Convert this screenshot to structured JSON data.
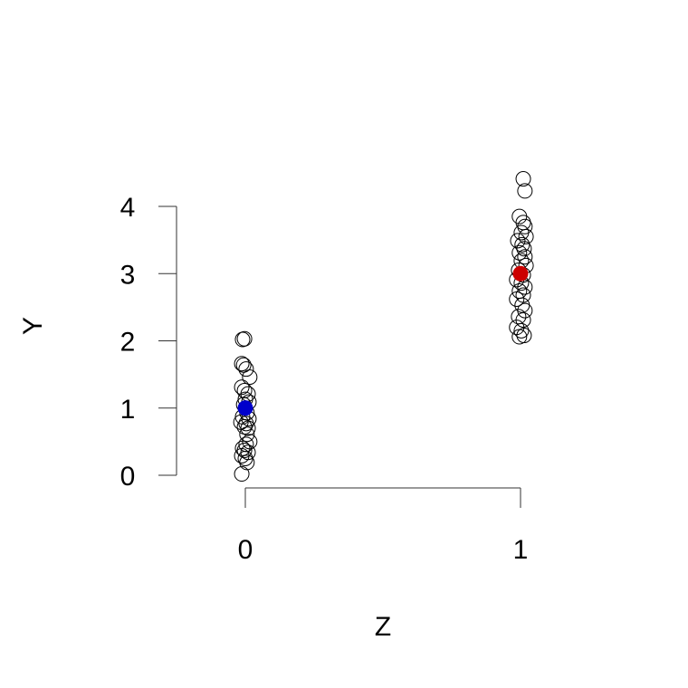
{
  "chart_data": {
    "type": "scatter",
    "title": "",
    "xlabel": "Z",
    "ylabel": "Y",
    "xlim": [
      0,
      1
    ],
    "ylim": [
      0,
      4
    ],
    "x_ticks": [
      "0",
      "1"
    ],
    "y_ticks": [
      "0",
      "1",
      "2",
      "3",
      "4"
    ],
    "grid": false,
    "legend": "none",
    "series": [
      {
        "group_x": 0,
        "color": "#000000",
        "marker": "open-circle",
        "points": [
          {
            "x": -0.01,
            "y": 2.02
          },
          {
            "x": -0.003,
            "y": 2.03
          },
          {
            "x": -0.013,
            "y": 1.66
          },
          {
            "x": -0.006,
            "y": 1.64
          },
          {
            "x": 0.003,
            "y": 1.58
          },
          {
            "x": 0.016,
            "y": 1.46
          },
          {
            "x": -0.013,
            "y": 1.31
          },
          {
            "x": -0.003,
            "y": 1.26
          },
          {
            "x": 0.01,
            "y": 1.21
          },
          {
            "x": 0.0,
            "y": 1.13
          },
          {
            "x": 0.013,
            "y": 1.09
          },
          {
            "x": -0.006,
            "y": 1.05
          },
          {
            "x": 0.006,
            "y": 0.93
          },
          {
            "x": -0.01,
            "y": 0.87
          },
          {
            "x": 0.013,
            "y": 0.84
          },
          {
            "x": -0.016,
            "y": 0.79
          },
          {
            "x": 0.003,
            "y": 0.77
          },
          {
            "x": -0.003,
            "y": 0.72
          },
          {
            "x": 0.01,
            "y": 0.7
          },
          {
            "x": 0.006,
            "y": 0.61
          },
          {
            "x": 0.016,
            "y": 0.5
          },
          {
            "x": 0.003,
            "y": 0.46
          },
          {
            "x": -0.01,
            "y": 0.4
          },
          {
            "x": -0.003,
            "y": 0.37
          },
          {
            "x": 0.01,
            "y": 0.34
          },
          {
            "x": -0.013,
            "y": 0.29
          },
          {
            "x": 0.0,
            "y": 0.25
          },
          {
            "x": 0.006,
            "y": 0.19
          },
          {
            "x": -0.013,
            "y": 0.02
          }
        ],
        "mean": {
          "x": 0,
          "y": 1.0,
          "color": "#0000cc"
        }
      },
      {
        "group_x": 1,
        "color": "#000000",
        "marker": "open-circle",
        "points": [
          {
            "x": 1.01,
            "y": 4.41
          },
          {
            "x": 1.016,
            "y": 4.23
          },
          {
            "x": 0.996,
            "y": 3.85
          },
          {
            "x": 1.01,
            "y": 3.76
          },
          {
            "x": 1.016,
            "y": 3.7
          },
          {
            "x": 1.003,
            "y": 3.61
          },
          {
            "x": 1.02,
            "y": 3.55
          },
          {
            "x": 0.99,
            "y": 3.49
          },
          {
            "x": 1.006,
            "y": 3.43
          },
          {
            "x": 1.013,
            "y": 3.37
          },
          {
            "x": 0.996,
            "y": 3.31
          },
          {
            "x": 1.016,
            "y": 3.25
          },
          {
            "x": 1.003,
            "y": 3.19
          },
          {
            "x": 1.02,
            "y": 3.12
          },
          {
            "x": 0.993,
            "y": 3.05
          },
          {
            "x": 1.01,
            "y": 2.98
          },
          {
            "x": 0.986,
            "y": 2.91
          },
          {
            "x": 1.003,
            "y": 2.86
          },
          {
            "x": 1.016,
            "y": 2.8
          },
          {
            "x": 0.996,
            "y": 2.74
          },
          {
            "x": 1.01,
            "y": 2.68
          },
          {
            "x": 0.986,
            "y": 2.62
          },
          {
            "x": 1.006,
            "y": 2.53
          },
          {
            "x": 1.016,
            "y": 2.45
          },
          {
            "x": 0.993,
            "y": 2.36
          },
          {
            "x": 1.01,
            "y": 2.31
          },
          {
            "x": 0.986,
            "y": 2.2
          },
          {
            "x": 1.003,
            "y": 2.15
          },
          {
            "x": 1.013,
            "y": 2.08
          },
          {
            "x": 0.996,
            "y": 2.06
          }
        ],
        "mean": {
          "x": 1,
          "y": 3.0,
          "color": "#cc0000"
        }
      }
    ]
  }
}
